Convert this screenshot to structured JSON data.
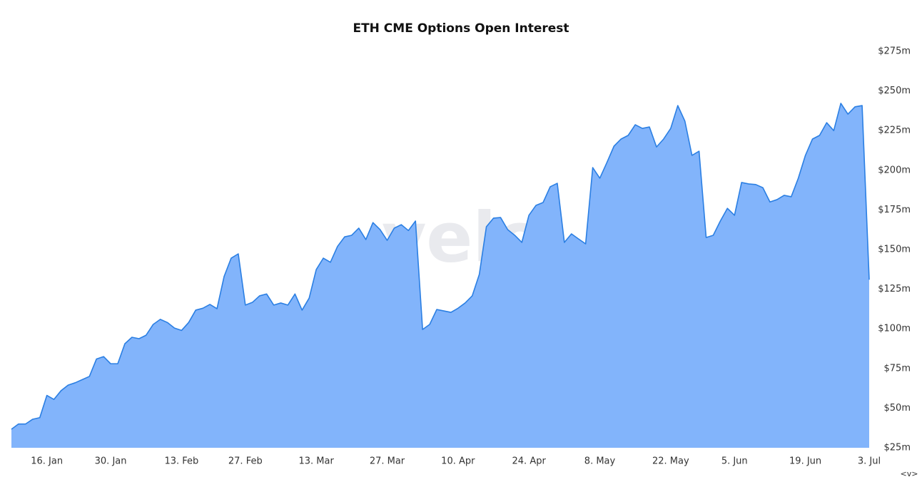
{
  "chart_data": {
    "type": "area",
    "title": "ETH CME Options Open Interest",
    "watermark": "velo",
    "footer_label": "<v>",
    "categories": [
      null,
      null,
      null,
      null,
      null,
      "16. Jan",
      null,
      null,
      null,
      null,
      null,
      null,
      null,
      null,
      "30. Jan",
      null,
      null,
      null,
      null,
      null,
      null,
      null,
      null,
      null,
      "13. Feb",
      null,
      null,
      null,
      null,
      null,
      null,
      null,
      null,
      "27. Feb",
      null,
      null,
      null,
      null,
      null,
      null,
      null,
      null,
      null,
      "13. Mar",
      null,
      null,
      null,
      null,
      null,
      null,
      null,
      null,
      null,
      "27. Mar",
      null,
      null,
      null,
      null,
      null,
      null,
      null,
      null,
      null,
      "10. Apr",
      null,
      null,
      null,
      null,
      null,
      null,
      null,
      null,
      null,
      "24. Apr",
      null,
      null,
      null,
      null,
      null,
      null,
      null,
      null,
      null,
      "8. May",
      null,
      null,
      null,
      null,
      null,
      null,
      null,
      null,
      null,
      "22. May",
      null,
      null,
      null,
      null,
      null,
      null,
      null,
      null,
      "5. Jun",
      null,
      null,
      null,
      null,
      null,
      null,
      null,
      null,
      null,
      "19. Jun",
      null,
      null,
      null,
      null,
      null,
      null,
      null,
      null,
      "3. Jul"
    ],
    "values": [
      36.7,
      40,
      40,
      43,
      44,
      58,
      55.5,
      61,
      64.5,
      66,
      68,
      70,
      81,
      82.5,
      78,
      78,
      90.6,
      94.7,
      93.8,
      96,
      102.8,
      106,
      104,
      100.5,
      99,
      104,
      111.8,
      113,
      115.4,
      112.7,
      133,
      144.6,
      147.3,
      115,
      116.7,
      120.8,
      122,
      115,
      116.3,
      115,
      122,
      111.8,
      119.4,
      137.4,
      144.6,
      142,
      152,
      158,
      159,
      163.5,
      156.3,
      167,
      162.6,
      155.8,
      163.5,
      165.7,
      162,
      168,
      99.6,
      102.8,
      112.2,
      111.3,
      110.4,
      113,
      116.3,
      120.8,
      134.3,
      164.4,
      169.8,
      170.2,
      162.6,
      159,
      154.5,
      171.6,
      177.9,
      179.7,
      189.6,
      191.8,
      154.5,
      159.9,
      156.7,
      153.6,
      201.7,
      195,
      204.9,
      215.2,
      219.7,
      222,
      228.7,
      226.4,
      227.3,
      214.7,
      219.7,
      226.4,
      240.8,
      231,
      209.4,
      212,
      157.6,
      159,
      168,
      176,
      171.6,
      192.3,
      191.4,
      191,
      189,
      180,
      181.5,
      184.2,
      183.3,
      195,
      209.4,
      219.7,
      222,
      230,
      225,
      242.2,
      235.4,
      240,
      240.8,
      131
    ],
    "color": "#82b4fb",
    "line_color": "#2b7fe3",
    "ylim": [
      25,
      275
    ],
    "yticks": [
      {
        "value": 25,
        "label": "$25m"
      },
      {
        "value": 50,
        "label": "$50m"
      },
      {
        "value": 75,
        "label": "$75m"
      },
      {
        "value": 100,
        "label": "$100m"
      },
      {
        "value": 125,
        "label": "$125m"
      },
      {
        "value": 150,
        "label": "$150m"
      },
      {
        "value": 175,
        "label": "$175m"
      },
      {
        "value": 200,
        "label": "$200m"
      },
      {
        "value": 225,
        "label": "$225m"
      },
      {
        "value": 250,
        "label": "$250m"
      },
      {
        "value": 275,
        "label": "$275m"
      }
    ],
    "grid": false
  }
}
